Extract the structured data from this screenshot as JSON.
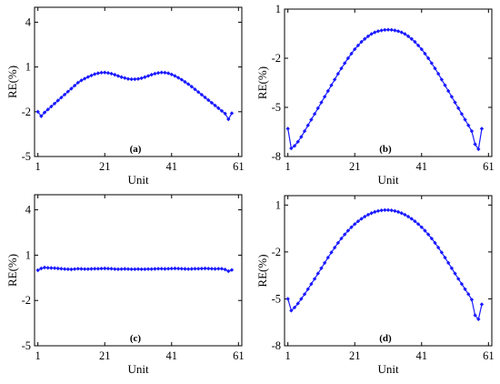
{
  "chart_data": [
    {
      "id": "a",
      "type": "line",
      "panel_label": "(a)",
      "xlabel": "Unit",
      "ylabel": "RE(%)",
      "xlim": [
        0,
        62
      ],
      "ylim": [
        -5,
        5
      ],
      "xticks": [
        1,
        21,
        41,
        61
      ],
      "yticks": [
        4,
        1,
        -2,
        -5
      ],
      "grid": false,
      "series_color": "#1a1aff",
      "x": [
        1,
        2,
        3,
        4,
        5,
        6,
        7,
        8,
        9,
        10,
        11,
        12,
        13,
        14,
        15,
        16,
        17,
        18,
        19,
        20,
        21,
        22,
        23,
        24,
        25,
        26,
        27,
        28,
        29,
        30,
        31,
        32,
        33,
        34,
        35,
        36,
        37,
        38,
        39,
        40,
        41,
        42,
        43,
        44,
        45,
        46,
        47,
        48,
        49,
        50,
        51,
        52,
        53,
        54,
        55,
        56,
        57,
        58,
        59
      ],
      "y": [
        -2.0,
        -2.3,
        -2.05,
        -1.85,
        -1.65,
        -1.45,
        -1.25,
        -1.05,
        -0.85,
        -0.65,
        -0.45,
        -0.25,
        -0.05,
        0.1,
        0.22,
        0.33,
        0.43,
        0.52,
        0.58,
        0.62,
        0.63,
        0.6,
        0.55,
        0.48,
        0.4,
        0.32,
        0.26,
        0.2,
        0.18,
        0.18,
        0.2,
        0.25,
        0.32,
        0.4,
        0.48,
        0.55,
        0.6,
        0.63,
        0.62,
        0.58,
        0.5,
        0.4,
        0.28,
        0.15,
        0.0,
        -0.15,
        -0.32,
        -0.5,
        -0.68,
        -0.86,
        -1.04,
        -1.22,
        -1.4,
        -1.58,
        -1.76,
        -1.94,
        -2.12,
        -2.5,
        -2.1
      ]
    },
    {
      "id": "b",
      "type": "line",
      "panel_label": "(b)",
      "xlabel": "Unit",
      "ylabel": "RE(%)",
      "xlim": [
        0,
        62
      ],
      "ylim": [
        -8,
        1
      ],
      "xticks": [
        1,
        21,
        41,
        61
      ],
      "yticks": [
        1,
        -2,
        -5,
        -8
      ],
      "grid": false,
      "series_color": "#1a1aff",
      "x": [
        1,
        2,
        3,
        4,
        5,
        6,
        7,
        8,
        9,
        10,
        11,
        12,
        13,
        14,
        15,
        16,
        17,
        18,
        19,
        20,
        21,
        22,
        23,
        24,
        25,
        26,
        27,
        28,
        29,
        30,
        31,
        32,
        33,
        34,
        35,
        36,
        37,
        38,
        39,
        40,
        41,
        42,
        43,
        44,
        45,
        46,
        47,
        48,
        49,
        50,
        51,
        52,
        53,
        54,
        55,
        56,
        57,
        58,
        59
      ],
      "y": [
        -6.3,
        -7.5,
        -7.35,
        -7.1,
        -6.8,
        -6.45,
        -6.1,
        -5.75,
        -5.4,
        -5.05,
        -4.7,
        -4.35,
        -4.0,
        -3.65,
        -3.3,
        -2.95,
        -2.62,
        -2.3,
        -2.0,
        -1.72,
        -1.45,
        -1.22,
        -1.0,
        -0.82,
        -0.66,
        -0.52,
        -0.42,
        -0.35,
        -0.3,
        -0.27,
        -0.26,
        -0.27,
        -0.3,
        -0.35,
        -0.42,
        -0.52,
        -0.66,
        -0.82,
        -1.0,
        -1.22,
        -1.45,
        -1.72,
        -2.0,
        -2.3,
        -2.62,
        -2.95,
        -3.3,
        -3.65,
        -4.0,
        -4.35,
        -4.7,
        -5.05,
        -5.4,
        -5.75,
        -6.1,
        -6.45,
        -7.25,
        -7.55,
        -6.3
      ]
    },
    {
      "id": "c",
      "type": "line",
      "panel_label": "(c)",
      "xlabel": "Unit",
      "ylabel": "RE(%)",
      "xlim": [
        0,
        62
      ],
      "ylim": [
        -5,
        5
      ],
      "xticks": [
        1,
        21,
        41,
        61
      ],
      "yticks": [
        4,
        1,
        -2,
        -5
      ],
      "grid": false,
      "series_color": "#1a1aff",
      "x": [
        1,
        2,
        3,
        4,
        5,
        6,
        7,
        8,
        9,
        10,
        11,
        12,
        13,
        14,
        15,
        16,
        17,
        18,
        19,
        20,
        21,
        22,
        23,
        24,
        25,
        26,
        27,
        28,
        29,
        30,
        31,
        32,
        33,
        34,
        35,
        36,
        37,
        38,
        39,
        40,
        41,
        42,
        43,
        44,
        45,
        46,
        47,
        48,
        49,
        50,
        51,
        52,
        53,
        54,
        55,
        56,
        57,
        58,
        59
      ],
      "y": [
        0.0,
        0.12,
        0.18,
        0.16,
        0.15,
        0.14,
        0.12,
        0.1,
        0.08,
        0.07,
        0.06,
        0.08,
        0.1,
        0.09,
        0.08,
        0.08,
        0.09,
        0.1,
        0.1,
        0.11,
        0.12,
        0.11,
        0.1,
        0.08,
        0.07,
        0.08,
        0.09,
        0.08,
        0.07,
        0.07,
        0.08,
        0.07,
        0.07,
        0.08,
        0.08,
        0.09,
        0.1,
        0.1,
        0.09,
        0.1,
        0.11,
        0.12,
        0.11,
        0.1,
        0.09,
        0.08,
        0.09,
        0.1,
        0.1,
        0.11,
        0.12,
        0.11,
        0.1,
        0.09,
        0.1,
        0.1,
        0.05,
        -0.06,
        0.02
      ]
    },
    {
      "id": "d",
      "type": "line",
      "panel_label": "(d)",
      "xlabel": "Unit",
      "ylabel": "RE(%)",
      "xlim": [
        0,
        62
      ],
      "ylim": [
        -8,
        1.6
      ],
      "xticks": [
        1,
        21,
        41,
        61
      ],
      "yticks": [
        1,
        -2,
        -5,
        -8
      ],
      "grid": false,
      "series_color": "#1a1aff",
      "x": [
        1,
        2,
        3,
        4,
        5,
        6,
        7,
        8,
        9,
        10,
        11,
        12,
        13,
        14,
        15,
        16,
        17,
        18,
        19,
        20,
        21,
        22,
        23,
        24,
        25,
        26,
        27,
        28,
        29,
        30,
        31,
        32,
        33,
        34,
        35,
        36,
        37,
        38,
        39,
        40,
        41,
        42,
        43,
        44,
        45,
        46,
        47,
        48,
        49,
        50,
        51,
        52,
        53,
        54,
        55,
        56,
        57,
        58,
        59
      ],
      "y": [
        -5.0,
        -5.75,
        -5.55,
        -5.3,
        -5.0,
        -4.7,
        -4.38,
        -4.05,
        -3.72,
        -3.38,
        -3.04,
        -2.7,
        -2.36,
        -2.03,
        -1.72,
        -1.42,
        -1.14,
        -0.88,
        -0.64,
        -0.42,
        -0.22,
        -0.04,
        0.12,
        0.26,
        0.38,
        0.48,
        0.56,
        0.62,
        0.66,
        0.68,
        0.68,
        0.66,
        0.62,
        0.56,
        0.48,
        0.38,
        0.26,
        0.12,
        -0.04,
        -0.22,
        -0.42,
        -0.64,
        -0.88,
        -1.14,
        -1.42,
        -1.72,
        -2.03,
        -2.36,
        -2.7,
        -3.04,
        -3.38,
        -3.72,
        -4.05,
        -4.38,
        -4.7,
        -5.05,
        -6.05,
        -6.3,
        -5.35
      ]
    }
  ]
}
